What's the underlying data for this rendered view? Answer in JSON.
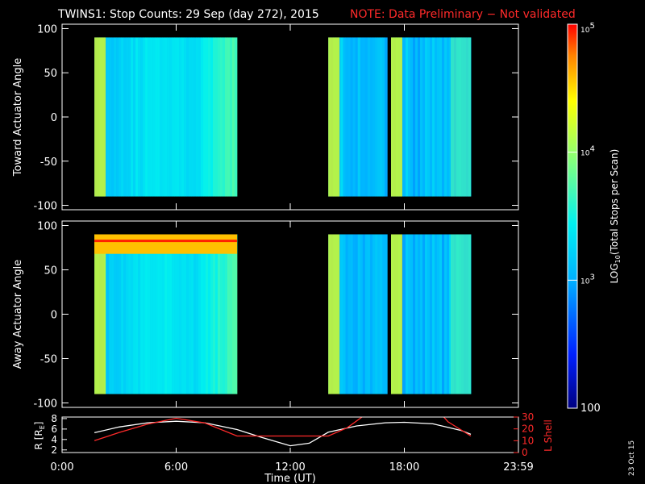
{
  "header": {
    "title": "TWINS1: Stop Counts: 29 Sep (day 272), 2015",
    "note": "NOTE: Data Preliminary − Not validated"
  },
  "footer": {
    "date_stamp": "23 Oct 15"
  },
  "colors": {
    "background": "#000000",
    "axes": "#ffffff",
    "note": "#ff2a2a",
    "r_line": "#ffffff",
    "lshell_line": "#ff2a2a"
  },
  "chart_data": [
    {
      "type": "heatmap",
      "ylabel": "Toward Actuator Angle",
      "ylim": [
        -105,
        105
      ],
      "yticks": [
        100,
        50,
        0,
        -50,
        -100
      ],
      "xlim": [
        0,
        24
      ],
      "y_range_data": [
        -90,
        90
      ],
      "segments": [
        [
          1.7,
          9.2
        ],
        [
          14.0,
          17.1
        ],
        [
          17.3,
          21.5
        ]
      ],
      "colorscale": "log10 counts 100–100000"
    },
    {
      "type": "heatmap",
      "ylabel": "Away Actuator Angle",
      "ylim": [
        -105,
        105
      ],
      "yticks": [
        100,
        50,
        0,
        -50,
        -100
      ],
      "xlim": [
        0,
        24
      ],
      "y_range_data": [
        -90,
        90
      ],
      "segments": [
        [
          1.7,
          9.2
        ],
        [
          14.0,
          17.1
        ],
        [
          17.3,
          21.5
        ]
      ],
      "colorscale": "log10 counts 100–100000"
    },
    {
      "type": "line",
      "xlabel": "Time (UT)",
      "xlim": [
        0,
        24
      ],
      "xticks": [
        "0:00",
        "6:00",
        "12:00",
        "18:00",
        "23:59"
      ],
      "xtick_hours": [
        0,
        6,
        12,
        18,
        24
      ],
      "left_axis": {
        "label": "R [R",
        "label_sub": "E",
        "label_close": "]",
        "ylim": [
          1.5,
          8.3
        ],
        "yticks": [
          2,
          4,
          6,
          8
        ]
      },
      "right_axis": {
        "label": "L Shell",
        "ylim": [
          0,
          30
        ],
        "yticks": [
          0,
          10,
          20,
          30
        ]
      },
      "series": [
        {
          "axis": "left",
          "x": [
            1.7,
            3,
            4.5,
            6,
            7.5,
            9.2,
            10.5,
            12,
            13,
            14,
            15.5,
            17,
            18,
            19.5,
            21,
            21.5
          ],
          "values": [
            5.3,
            6.4,
            7.2,
            7.5,
            7.2,
            5.9,
            4.4,
            2.8,
            3.3,
            5.4,
            6.6,
            7.2,
            7.3,
            7.0,
            5.7,
            5.0
          ]
        },
        {
          "axis": "right",
          "x": [
            1.7,
            3,
            4.5,
            6,
            7.5,
            9.2,
            12,
            14,
            15,
            16.2,
            19.8,
            20.3,
            21.5
          ],
          "values": [
            10,
            17,
            24,
            29,
            25,
            14,
            14,
            14,
            21,
            35,
            35,
            26,
            14
          ]
        }
      ]
    }
  ],
  "colorbar": {
    "label": "LOG",
    "label_sub": "10",
    "label_rest": "(Total Stops per Scan)",
    "ticks": [
      {
        "base": "10",
        "exp": "5"
      },
      {
        "base": "10",
        "exp": "4"
      },
      {
        "base": "10",
        "exp": "3"
      },
      {
        "base": "100",
        "exp": ""
      }
    ],
    "tick_log_values": [
      5,
      4,
      3,
      2
    ],
    "range_log": [
      2,
      5
    ]
  }
}
